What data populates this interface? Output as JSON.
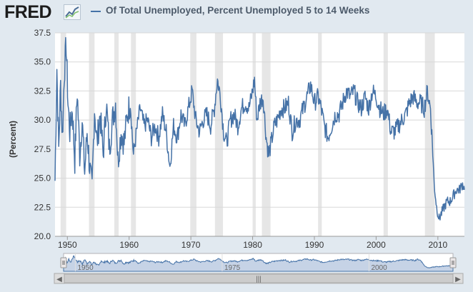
{
  "header": {
    "logo_text": "FRED",
    "logo_icon": "chart-line-icon",
    "title": "Of Total Unemployed, Percent Unemployed 5 to 14 Weeks"
  },
  "colors": {
    "background": "#e1e9f0",
    "plot_background": "#ffffff",
    "series": "#4572a7",
    "recession": "#e6e6e6",
    "navigator_fill": "#c6d3e6"
  },
  "chart_data": {
    "type": "line",
    "title": "Of Total Unemployed, Percent Unemployed 5 to 14 Weeks",
    "ylabel": "(Percent)",
    "xlabel": "",
    "xlim": [
      1948.0,
      2014.3
    ],
    "ylim": [
      20.0,
      37.5
    ],
    "yticks": [
      20.0,
      22.5,
      25.0,
      27.5,
      30.0,
      32.5,
      35.0,
      37.5
    ],
    "ytick_labels": [
      "20.0",
      "22.5",
      "25.0",
      "27.5",
      "30.0",
      "32.5",
      "35.0",
      "37.5"
    ],
    "xticks": [
      1950,
      1960,
      1970,
      1980,
      1990,
      2000,
      2010
    ],
    "xtick_labels": [
      "1950",
      "1960",
      "1970",
      "1980",
      "1990",
      "2000",
      "2010"
    ],
    "grid": "horizontal",
    "recessions": [
      [
        1948.9,
        1949.8
      ],
      [
        1953.5,
        1954.4
      ],
      [
        1957.6,
        1958.3
      ],
      [
        1960.3,
        1961.1
      ],
      [
        1969.9,
        1970.9
      ],
      [
        1973.9,
        1975.2
      ],
      [
        1980.0,
        1980.5
      ],
      [
        1981.5,
        1982.9
      ],
      [
        1990.6,
        1991.2
      ],
      [
        2001.2,
        2001.9
      ],
      [
        2007.9,
        2009.5
      ]
    ],
    "series": [
      {
        "x": [
          1948.0,
          1948.3,
          1948.6,
          1948.9,
          1949.2,
          1949.5,
          1949.8,
          1950.1,
          1950.4,
          1950.8,
          1951.2,
          1951.6,
          1952.0,
          1952.4,
          1952.8,
          1953.2,
          1953.6,
          1954.0,
          1954.4,
          1954.8,
          1955.3,
          1955.8,
          1956.3,
          1956.8,
          1957.3,
          1957.8,
          1958.2,
          1958.7,
          1959.2,
          1959.7,
          1960.2,
          1960.7,
          1961.2,
          1961.8,
          1962.4,
          1963.0,
          1963.6,
          1964.2,
          1964.8,
          1965.4,
          1966.0,
          1966.6,
          1967.2,
          1967.8,
          1968.4,
          1969.0,
          1969.6,
          1970.2,
          1970.8,
          1971.4,
          1972.0,
          1972.6,
          1973.2,
          1973.8,
          1974.3,
          1974.8,
          1975.3,
          1975.8,
          1976.4,
          1977.0,
          1977.6,
          1978.2,
          1978.8,
          1979.4,
          1980.0,
          1980.3,
          1980.7,
          1981.2,
          1981.7,
          1982.2,
          1982.6,
          1983.0,
          1983.5,
          1984.0,
          1984.6,
          1985.2,
          1985.8,
          1986.4,
          1987.0,
          1987.6,
          1988.2,
          1988.8,
          1989.4,
          1990.0,
          1990.6,
          1991.1,
          1991.6,
          1992.2,
          1992.8,
          1993.4,
          1994.0,
          1994.6,
          1995.2,
          1995.8,
          1996.4,
          1997.0,
          1997.6,
          1998.2,
          1998.8,
          1999.4,
          2000.0,
          2000.6,
          2001.2,
          2001.8,
          2002.4,
          2003.0,
          2003.6,
          2004.2,
          2004.8,
          2005.4,
          2006.0,
          2006.6,
          2007.2,
          2007.8,
          2008.3,
          2008.8,
          2009.1,
          2009.4,
          2009.8,
          2010.2,
          2010.6,
          2011.0,
          2011.5,
          2012.0,
          2012.5,
          2013.0,
          2013.5,
          2014.0,
          2014.3
        ],
        "values": [
          24.8,
          34.5,
          27.5,
          33.0,
          28.5,
          34.0,
          36.5,
          31.5,
          29.0,
          31.0,
          26.5,
          32.5,
          27.0,
          30.0,
          25.5,
          29.0,
          26.0,
          24.0,
          31.0,
          28.0,
          30.5,
          27.0,
          31.5,
          27.5,
          30.0,
          31.5,
          26.5,
          29.0,
          28.0,
          30.5,
          31.5,
          27.0,
          29.0,
          31.0,
          29.5,
          30.0,
          28.5,
          29.5,
          28.5,
          30.5,
          29.0,
          26.0,
          29.5,
          28.5,
          30.5,
          29.5,
          31.0,
          32.5,
          30.0,
          29.0,
          30.0,
          30.5,
          29.5,
          31.0,
          33.5,
          32.0,
          29.0,
          28.0,
          30.0,
          30.5,
          29.5,
          31.0,
          31.5,
          31.0,
          32.5,
          33.5,
          30.0,
          31.5,
          32.0,
          28.5,
          27.0,
          28.0,
          29.5,
          30.0,
          31.0,
          31.0,
          31.5,
          29.0,
          30.0,
          30.0,
          31.0,
          32.0,
          33.0,
          31.5,
          32.0,
          31.0,
          29.5,
          28.5,
          29.5,
          30.5,
          30.5,
          31.5,
          32.5,
          32.0,
          32.5,
          31.5,
          31.0,
          32.0,
          31.0,
          32.5,
          32.0,
          31.0,
          30.5,
          31.0,
          29.0,
          29.0,
          29.5,
          30.0,
          30.5,
          31.5,
          32.0,
          31.5,
          31.5,
          31.0,
          32.5,
          31.0,
          28.0,
          24.5,
          22.5,
          21.5,
          22.0,
          22.5,
          23.0,
          23.0,
          23.5,
          24.0,
          24.0,
          24.5,
          24.0
        ]
      }
    ]
  },
  "navigator": {
    "labels": [
      "1950",
      "1975",
      "2000"
    ],
    "scroll_left_arrow": "◀",
    "scroll_right_arrow": "▶",
    "scroll_grip": "|||"
  }
}
